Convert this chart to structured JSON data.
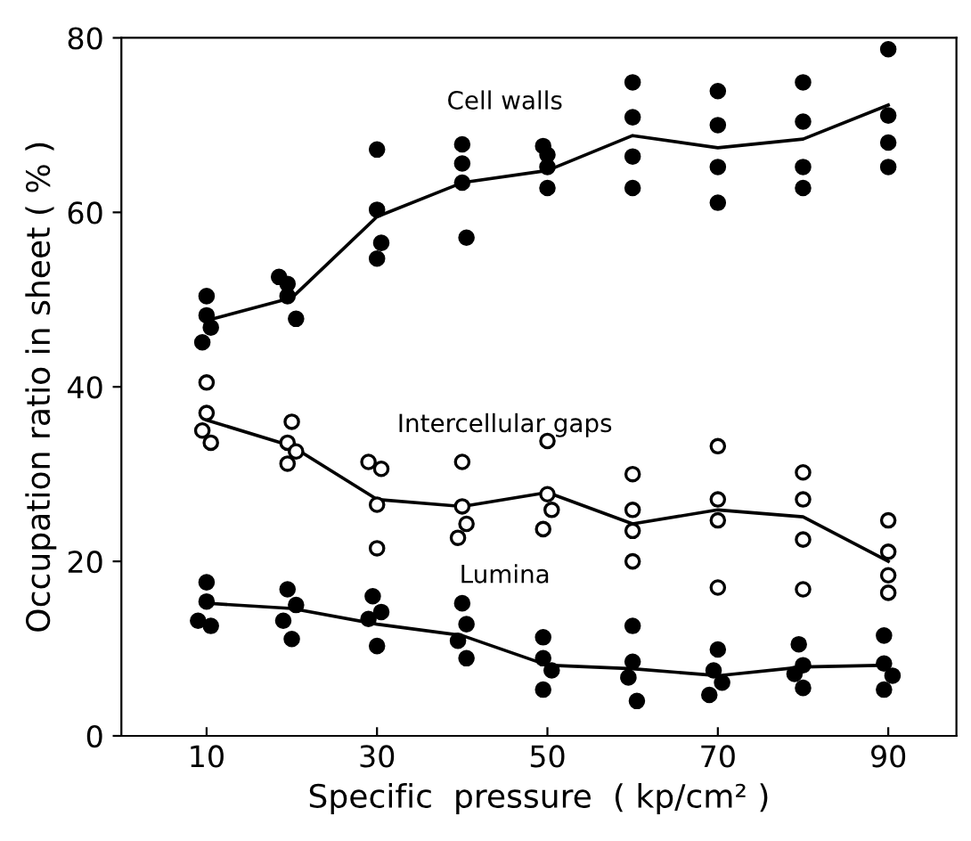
{
  "chart_data": {
    "type": "scatter",
    "xlabel": "Specific  pressure  ( kp/cm² )",
    "ylabel": "Occupation ratio in sheet ( % )",
    "xlim": [
      0,
      98
    ],
    "ylim": [
      0,
      80
    ],
    "xticks": [
      10,
      30,
      50,
      70,
      90
    ],
    "yticks": [
      0,
      20,
      40,
      60,
      80
    ],
    "grid": false,
    "series": [
      {
        "color": "#000000",
        "marker": "circle",
        "x": [
          10,
          10,
          10.5,
          9.5,
          18.5,
          19.5,
          20.5,
          19.5,
          30,
          30,
          30.5,
          30,
          40,
          40,
          40,
          40.5,
          49.5,
          50,
          50,
          50,
          60,
          60,
          60,
          60,
          70,
          70,
          70,
          70,
          80,
          80,
          80,
          80,
          90,
          90,
          90,
          90
        ],
        "values": [
          50.4,
          48.2,
          46.8,
          45.1,
          52.6,
          51.8,
          47.8,
          50.4,
          67.2,
          60.3,
          56.5,
          54.7,
          67.8,
          65.6,
          63.4,
          57.1,
          67.6,
          66.6,
          65.2,
          62.8,
          74.9,
          70.9,
          66.4,
          62.8,
          73.9,
          70.0,
          65.2,
          61.1,
          74.9,
          70.4,
          65.2,
          62.8,
          78.7,
          71.1,
          68.0,
          65.2
        ]
      },
      {
        "type": "line",
        "name": "Cell walls",
        "color": "#000000",
        "marker": "none",
        "x": [
          10,
          20,
          30,
          40,
          50,
          60,
          70,
          80,
          90
        ],
        "values": [
          47.6,
          50.2,
          59.5,
          63.4,
          64.8,
          68.8,
          67.4,
          68.4,
          72.3
        ]
      },
      {
        "color": "#ffffff",
        "marker": "circle",
        "x": [
          10,
          10,
          9.5,
          10.5,
          20,
          19.5,
          19.5,
          20.5,
          29,
          30.5,
          30,
          30,
          40,
          40,
          39.5,
          40.5,
          50,
          50,
          49.5,
          50.5,
          60,
          60,
          60,
          60,
          70,
          70,
          70,
          70,
          80,
          80,
          80,
          80,
          90,
          90,
          90,
          90
        ],
        "values": [
          40.5,
          37.0,
          35.0,
          33.6,
          36.0,
          33.6,
          31.2,
          32.6,
          31.4,
          30.6,
          26.5,
          21.5,
          31.4,
          26.3,
          22.7,
          24.3,
          33.8,
          27.7,
          23.7,
          25.9,
          30.0,
          25.9,
          23.5,
          20.0,
          33.2,
          27.1,
          24.7,
          17.0,
          30.2,
          27.1,
          22.5,
          16.8,
          24.7,
          21.1,
          18.4,
          16.4
        ]
      },
      {
        "type": "line",
        "name": "Intercellular gaps",
        "color": "#000000",
        "marker": "none",
        "x": [
          10,
          20,
          30,
          40,
          50,
          60,
          70,
          80,
          90
        ],
        "values": [
          36.2,
          33.2,
          27.1,
          26.3,
          27.9,
          24.3,
          25.9,
          25.1,
          20.0
        ]
      },
      {
        "color": "#000000",
        "marker": "circle",
        "x": [
          10,
          10,
          9,
          10.5,
          19.5,
          20.5,
          19,
          20,
          29.5,
          30.5,
          29,
          30,
          40,
          40.5,
          39.5,
          40.5,
          49.5,
          49.5,
          50.5,
          49.5,
          60,
          60,
          59.5,
          60.5,
          70,
          69.5,
          70.5,
          69,
          79.5,
          80,
          79,
          80,
          89.5,
          89.5,
          90.5,
          89.5
        ],
        "values": [
          17.6,
          15.4,
          13.2,
          12.6,
          16.8,
          15.0,
          13.2,
          11.1,
          16.0,
          14.2,
          13.4,
          10.3,
          15.2,
          12.8,
          10.9,
          8.9,
          11.3,
          8.9,
          7.5,
          5.3,
          12.6,
          8.5,
          6.7,
          4.0,
          9.9,
          7.5,
          6.1,
          4.7,
          10.5,
          8.1,
          7.1,
          5.5,
          11.5,
          8.3,
          6.9,
          5.3
        ]
      },
      {
        "type": "line",
        "name": "Lumina",
        "color": "#000000",
        "marker": "none",
        "x": [
          10,
          20,
          30,
          40,
          50,
          60,
          70,
          80,
          90
        ],
        "values": [
          15.2,
          14.6,
          12.8,
          11.5,
          8.1,
          7.7,
          6.9,
          7.9,
          8.1
        ]
      }
    ]
  }
}
